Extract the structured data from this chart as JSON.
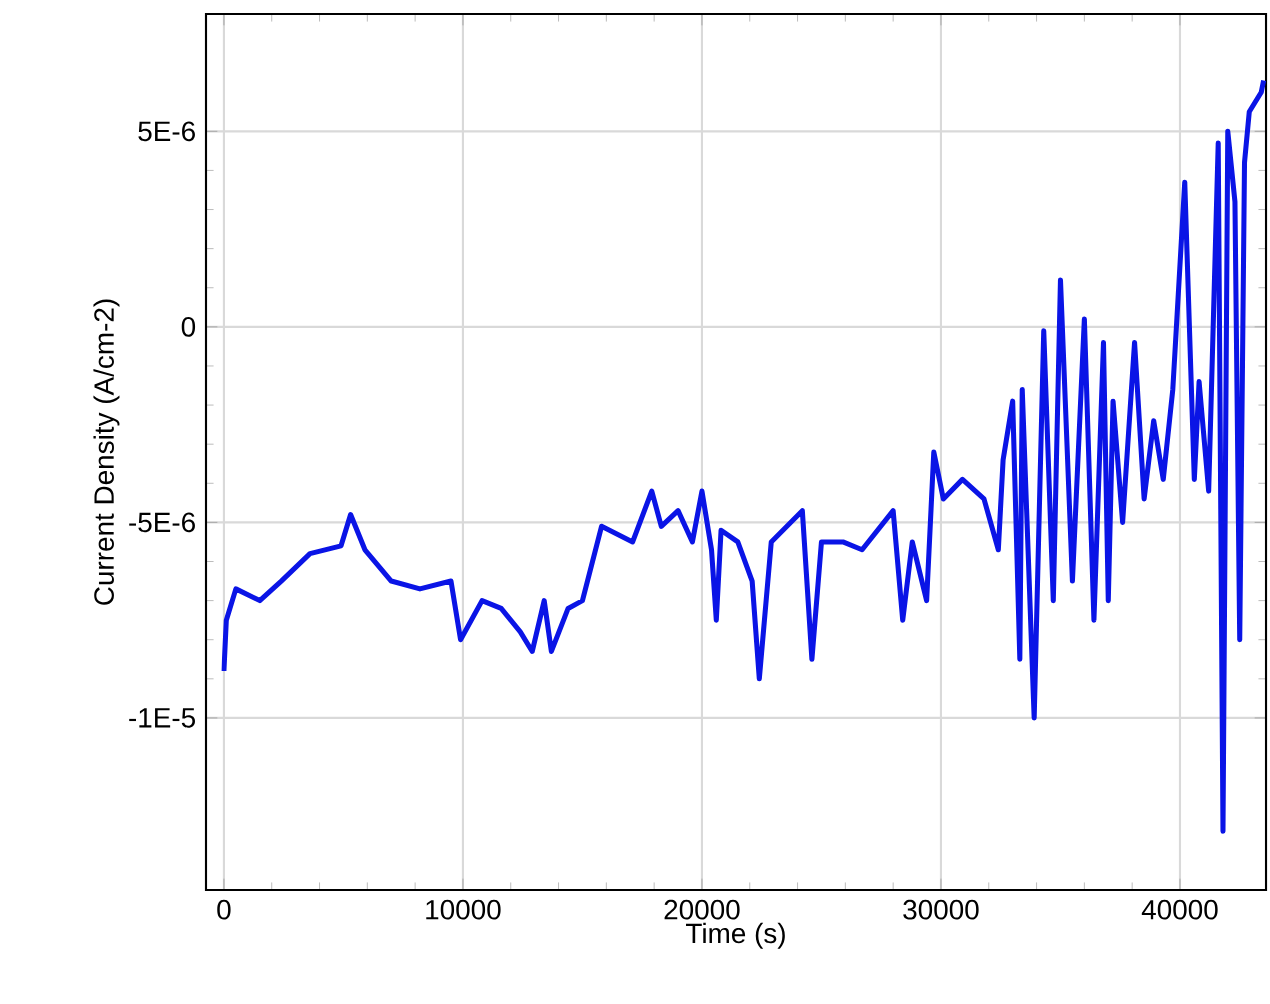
{
  "chart_data": {
    "type": "line",
    "xlabel": "Time (s)",
    "ylabel": "Current Density (A/cm-2)",
    "grid": true,
    "line_style": "solid",
    "xlim": [
      -750,
      43600
    ],
    "ylim": [
      -1.44e-05,
      8e-06
    ],
    "xticks": [
      0,
      10000,
      20000,
      30000,
      40000
    ],
    "yticks": [
      {
        "value": 5e-06,
        "label": "5E-6"
      },
      0,
      {
        "value": -5e-06,
        "label": "-5E-6"
      },
      {
        "value": -1e-05,
        "label": "-1E-5"
      }
    ],
    "series": [
      {
        "color": "#0a14e6",
        "x": [
          0,
          100,
          500,
          1500,
          2400,
          3600,
          4900,
          5300,
          5900,
          7000,
          8200,
          9500,
          9900,
          10800,
          11600,
          12400,
          12900,
          13400,
          13700,
          14400,
          15000,
          15800,
          17100,
          17900,
          18300,
          19000,
          19600,
          20000,
          20400,
          20600,
          20800,
          21500,
          22100,
          22400,
          22900,
          24200,
          24600,
          25000,
          25900,
          26700,
          28000,
          28400,
          28800,
          29400,
          29700,
          30100,
          30900,
          31800,
          32400,
          32600,
          33000,
          33300,
          33400,
          33900,
          34300,
          34700,
          35000,
          35500,
          36000,
          36400,
          36800,
          37000,
          37200,
          37600,
          38100,
          38500,
          38900,
          39300,
          39700,
          40200,
          40600,
          40800,
          41200,
          41600,
          41800,
          42000,
          42300,
          42500,
          42700,
          42900,
          43400,
          43500
        ],
        "values": [
          -8.8e-06,
          -7.5e-06,
          -6.7e-06,
          -7e-06,
          -6.5e-06,
          -5.8e-06,
          -5.6e-06,
          -4.8e-06,
          -5.7e-06,
          -6.5e-06,
          -6.7e-06,
          -6.5e-06,
          -8e-06,
          -7e-06,
          -7.2e-06,
          -7.8e-06,
          -8.3e-06,
          -7e-06,
          -8.3e-06,
          -7.2e-06,
          -7e-06,
          -5.1e-06,
          -5.5e-06,
          -4.2e-06,
          -5.1e-06,
          -4.7e-06,
          -5.5e-06,
          -4.2e-06,
          -5.7e-06,
          -7.5e-06,
          -5.2e-06,
          -5.5e-06,
          -6.5e-06,
          -9e-06,
          -5.5e-06,
          -4.7e-06,
          -8.5e-06,
          -5.5e-06,
          -5.5e-06,
          -5.7e-06,
          -4.7e-06,
          -7.5e-06,
          -5.5e-06,
          -7e-06,
          -3.2e-06,
          -4.4e-06,
          -3.9e-06,
          -4.4e-06,
          -5.7e-06,
          -3.4e-06,
          -1.9e-06,
          -8.5e-06,
          -1.6e-06,
          -1e-05,
          -1e-07,
          -7e-06,
          1.2e-06,
          -6.5e-06,
          2e-07,
          -7.5e-06,
          -4e-07,
          -7e-06,
          -1.9e-06,
          -5e-06,
          -4e-07,
          -4.4e-06,
          -2.4e-06,
          -3.9e-06,
          -1.6e-06,
          3.7e-06,
          -3.9e-06,
          -1.4e-06,
          -4.2e-06,
          4.7e-06,
          -1.29e-05,
          5e-06,
          3.2e-06,
          -8e-06,
          4.2e-06,
          5.5e-06,
          6e-06,
          6.3e-06
        ]
      }
    ]
  }
}
